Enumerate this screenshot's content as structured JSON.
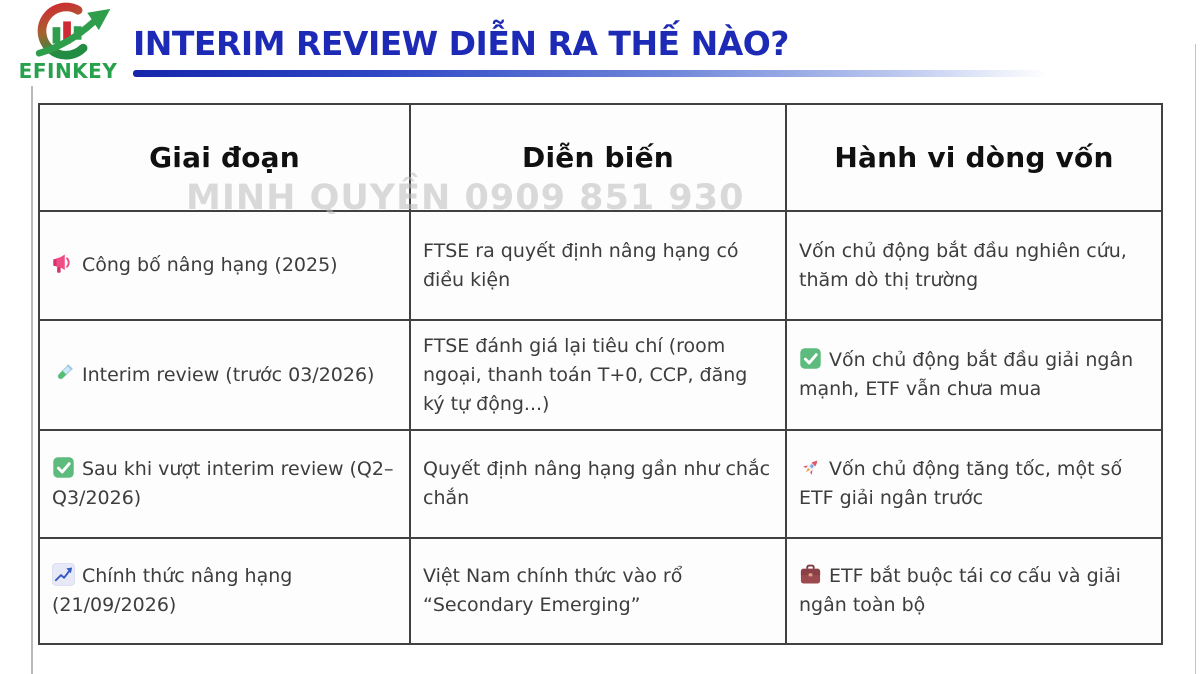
{
  "page": {
    "title": "INTERIM REVIEW DIỄN RA THẾ NÀO?"
  },
  "logo": {
    "brand": "EFINKEY"
  },
  "watermark": {
    "text": "MINH QUYỀN 0909 851 930"
  },
  "table": {
    "columns": [
      "Giai đoạn",
      "Diễn biến",
      "Hành vi dòng vốn"
    ],
    "rows": [
      {
        "stage_icon": "megaphone-icon",
        "stage": "Công bố nâng hạng (2025)",
        "event": "FTSE ra quyết định nâng hạng có điều kiện",
        "flow": "Vốn chủ động bắt đầu nghiên cứu, thăm dò thị trường"
      },
      {
        "stage_icon": "test-tube-icon",
        "stage": "Interim review (trước 03/2026)",
        "event": "FTSE đánh giá lại tiêu chí (room ngoại, thanh toán T+0, CCP, đăng ký tự động...)",
        "flow_icon": "check-icon",
        "flow": "Vốn chủ động bắt đầu giải ngân mạnh, ETF vẫn chưa mua"
      },
      {
        "stage_icon": "check-icon",
        "stage": "Sau khi vượt interim review (Q2–Q3/2026)",
        "event": "Quyết định nâng hạng gần như chắc chắn",
        "flow_icon": "rocket-icon",
        "flow": "Vốn chủ động tăng tốc, một số ETF giải ngân trước"
      },
      {
        "stage_icon": "chart-up-icon",
        "stage": "Chính thức nâng hạng (21/09/2026)",
        "event": "Việt Nam chính thức vào rổ “Secondary Emerging”",
        "flow_icon": "briefcase-icon",
        "flow": "ETF bắt buộc tái cơ cấu và giải ngân toàn bộ"
      }
    ]
  },
  "colors": {
    "title_blue": "#1d2ab5",
    "brand_green": "#28a14c",
    "border_gray": "#414141",
    "body_text": "#3d3d3d",
    "watermark_gray": "#bdbdbd"
  }
}
